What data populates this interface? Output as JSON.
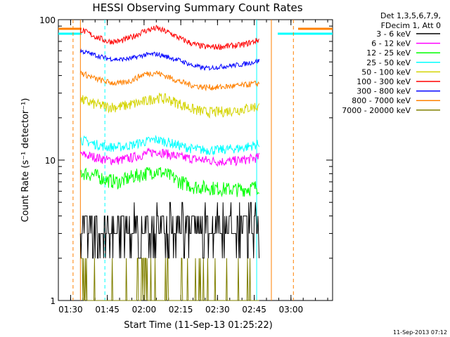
{
  "chart_data": {
    "type": "line",
    "title": "HESSI Observing Summary Count Rates",
    "xlabel": "Start Time (11-Sep-13 01:25:22)",
    "ylabel": "Count Rate (s⁻¹ detector⁻¹)",
    "yscale": "log",
    "ylim": [
      1,
      100
    ],
    "xlim_minutes_after_0125": [
      0,
      112
    ],
    "x_ticks": [
      "01:30",
      "01:45",
      "02:00",
      "02:15",
      "02:30",
      "02:45",
      "03:00"
    ],
    "y_ticks": [
      "1",
      "10",
      "100"
    ],
    "legend_header": [
      "Det 1,3,5,6,7,9,",
      "FDecim 1, Att 0"
    ],
    "legend_placement": "right",
    "data_start_time": "01:34",
    "data_end_time": "02:47",
    "vertical_markers": [
      {
        "time": "01:31",
        "color": "#ff8000",
        "style": "dashed"
      },
      {
        "time": "01:34",
        "color": "#ff8000",
        "style": "solid"
      },
      {
        "time": "01:44",
        "color": "#00ffff",
        "style": "dashed"
      },
      {
        "time": "02:46",
        "color": "#00ffff",
        "style": "solid"
      },
      {
        "time": "02:52",
        "color": "#ff8000",
        "style": "solid"
      },
      {
        "time": "03:01",
        "color": "#ff8000",
        "style": "dashed"
      }
    ],
    "x": [
      "01:34",
      "01:40",
      "01:45",
      "01:50",
      "01:55",
      "02:00",
      "02:05",
      "02:10",
      "02:15",
      "02:20",
      "02:25",
      "02:30",
      "02:35",
      "02:40",
      "02:45",
      "02:47"
    ],
    "series": [
      {
        "name": "3 - 6 keV",
        "color": "#000000",
        "values": [
          3.5,
          3.3,
          3.0,
          3.1,
          3.2,
          3.5,
          3.6,
          3.4,
          3.2,
          3.0,
          3.0,
          3.0,
          3.0,
          3.0,
          3.1,
          3.1
        ]
      },
      {
        "name": "6 - 12 keV",
        "color": "#ff00ff",
        "values": [
          11,
          10.5,
          10,
          10,
          10.4,
          11,
          11.6,
          11,
          10.5,
          10.2,
          10,
          9.8,
          9.8,
          10,
          10.3,
          10.5
        ]
      },
      {
        "name": "12 - 25 keV",
        "color": "#00ff00",
        "values": [
          8.2,
          7.8,
          7.2,
          7.0,
          7.6,
          8.0,
          8.4,
          7.8,
          7.0,
          6.5,
          6.4,
          6.3,
          6.2,
          6.2,
          6.4,
          6.5
        ]
      },
      {
        "name": "25 - 50 keV",
        "color": "#00ffff",
        "values": [
          14,
          13,
          12.4,
          12.4,
          12.8,
          13.5,
          14,
          13.4,
          12.6,
          12,
          11.8,
          11.8,
          12,
          12.2,
          12.8,
          13
        ]
      },
      {
        "name": "50 - 100 keV",
        "color": "#d4d400",
        "values": [
          27,
          25,
          24,
          24,
          25,
          26,
          28,
          27,
          25,
          23,
          22,
          22,
          22.5,
          23,
          24,
          24
        ]
      },
      {
        "name": "100 - 300 keV",
        "color": "#ff0000",
        "values": [
          85,
          76,
          70,
          70,
          75,
          83,
          87,
          81,
          73,
          67,
          64,
          64,
          65,
          66,
          70,
          72
        ]
      },
      {
        "name": "300 - 800 keV",
        "color": "#0000ff",
        "values": [
          60,
          56,
          53,
          52,
          53,
          56,
          57,
          54,
          51,
          47,
          45,
          46,
          47,
          48,
          50,
          51
        ]
      },
      {
        "name": "800 - 7000 keV",
        "color": "#ff8000",
        "values": [
          42,
          38,
          36,
          35,
          37,
          41,
          42,
          39,
          36,
          34,
          33,
          33,
          33.5,
          34,
          35,
          35
        ]
      },
      {
        "name": "7000 - 20000 keV",
        "color": "#808000",
        "values": [
          1.7,
          1.0,
          1.0,
          1.0,
          1.0,
          1.4,
          1.0,
          1.0,
          1.0,
          1.0,
          1.0,
          1.0,
          1.0,
          1.0,
          1.0,
          1.0
        ]
      }
    ],
    "annotations": [
      "11-Sep-2013 07:12"
    ]
  }
}
